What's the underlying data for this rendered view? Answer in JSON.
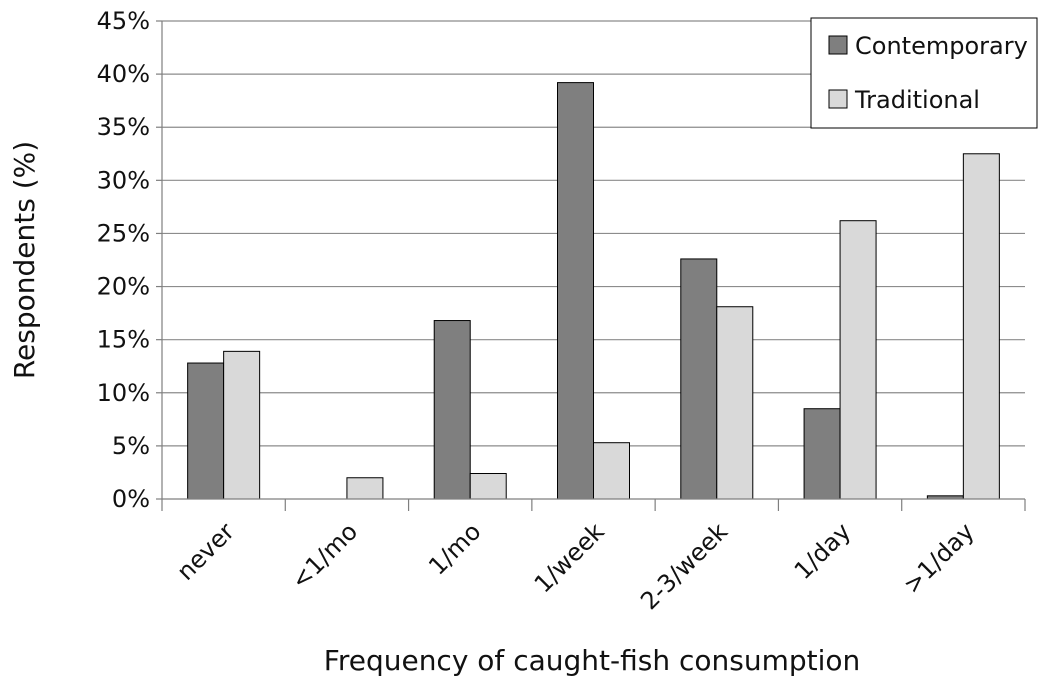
{
  "chart_data": {
    "type": "bar",
    "title": "",
    "xlabel": "Frequency of caught-fish consumption",
    "ylabel": "Respondents (%)",
    "categories": [
      "never",
      "<1/mo",
      "1/mo",
      "1/week",
      "2-3/week",
      "1/day",
      ">1/day"
    ],
    "series": [
      {
        "name": "Contemporary",
        "color": "#7f7f7f",
        "values": [
          12.8,
          0,
          16.8,
          39.2,
          22.6,
          8.5,
          0.3
        ]
      },
      {
        "name": "Traditional",
        "color": "#d9d9d9",
        "values": [
          13.9,
          2.0,
          2.4,
          5.3,
          18.1,
          26.2,
          32.5
        ]
      }
    ],
    "ylim": [
      0,
      45
    ],
    "yticks": [
      0,
      5,
      10,
      15,
      20,
      25,
      30,
      35,
      40,
      45
    ],
    "ytick_labels": [
      "0%",
      "5%",
      "10%",
      "15%",
      "20%",
      "25%",
      "30%",
      "35%",
      "40%",
      "45%"
    ],
    "grid": true,
    "legend_position": "top-right"
  }
}
